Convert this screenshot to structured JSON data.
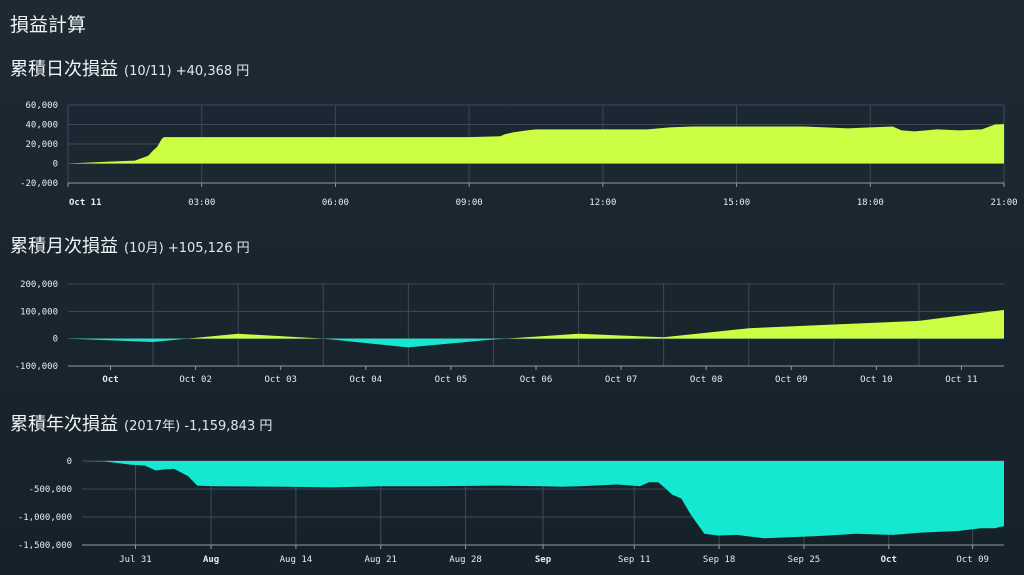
{
  "page_title": "損益計算",
  "sections": [
    {
      "title": "累積日次損益",
      "period": "(10/11)",
      "value": "+40,368",
      "unit": "円"
    },
    {
      "title": "累積月次損益",
      "period": "(10月)",
      "value": "+105,126",
      "unit": "円"
    },
    {
      "title": "累積年次損益",
      "period": "(2017年)",
      "value": "-1,159,843",
      "unit": "円"
    }
  ],
  "colors": {
    "positive": "#ccff44",
    "negative": "#14e8d0",
    "grid": "#3a4b56",
    "axis": "#8a9aa4"
  },
  "chart_data": [
    {
      "type": "area",
      "xlim": [
        0,
        21
      ],
      "ylim": [
        -20000,
        60000
      ],
      "yticks": [
        -20000,
        0,
        20000,
        40000,
        60000
      ],
      "ytick_labels": [
        "-20,000",
        "0",
        "20,000",
        "40,000",
        "60,000"
      ],
      "xticks": [
        0,
        3,
        6,
        9,
        12,
        15,
        18,
        21
      ],
      "xtick_labels": [
        "Oct 11",
        "03:00",
        "06:00",
        "09:00",
        "12:00",
        "15:00",
        "18:00",
        "21:00"
      ],
      "xtick_bold": [
        true,
        false,
        false,
        false,
        false,
        false,
        false,
        false
      ],
      "x": [
        0,
        0.5,
        1.0,
        1.5,
        1.8,
        1.9,
        2.0,
        2.1,
        2.15,
        2.2,
        3.0,
        5.0,
        7.0,
        9.0,
        9.7,
        9.8,
        10.0,
        10.3,
        10.5,
        12.0,
        13.0,
        13.5,
        14.0,
        15.0,
        16.5,
        17.0,
        17.5,
        18.0,
        18.5,
        18.7,
        19.0,
        19.5,
        20.0,
        20.5,
        20.8,
        21.0
      ],
      "y": [
        0,
        1000,
        2000,
        3000,
        8000,
        13000,
        17000,
        25000,
        27000,
        27000,
        27000,
        27000,
        27000,
        27000,
        28000,
        30000,
        32000,
        34000,
        35000,
        35000,
        35000,
        37000,
        38000,
        38000,
        38000,
        37000,
        36000,
        37000,
        38000,
        34000,
        33000,
        35000,
        34000,
        35000,
        40000,
        40368
      ]
    },
    {
      "type": "area",
      "xlim": [
        0,
        11
      ],
      "ylim": [
        -100000,
        200000
      ],
      "yticks": [
        -100000,
        0,
        100000,
        200000
      ],
      "ytick_labels": [
        "-100,000",
        "0",
        "100,000",
        "200,000"
      ],
      "xticks": [
        0.5,
        1.5,
        2.5,
        3.5,
        4.5,
        5.5,
        6.5,
        7.5,
        8.5,
        9.5,
        10.5
      ],
      "xtick_labels": [
        "Oct",
        "Oct 02",
        "Oct 03",
        "Oct 04",
        "Oct 05",
        "Oct 06",
        "Oct 07",
        "Oct 08",
        "Oct 09",
        "Oct 10",
        "Oct 11"
      ],
      "xtick_bold": [
        true,
        false,
        false,
        false,
        false,
        false,
        false,
        false,
        false,
        false,
        false
      ],
      "gridx": [
        1,
        2,
        3,
        4,
        5,
        6,
        7,
        8,
        9,
        10
      ],
      "x": [
        0,
        1,
        2,
        3,
        4,
        5,
        6,
        7,
        8,
        9,
        10,
        11
      ],
      "y": [
        0,
        -12000,
        18000,
        0,
        -32000,
        -3000,
        18000,
        5000,
        38000,
        52000,
        65000,
        105126
      ]
    },
    {
      "type": "area",
      "xlim": [
        0,
        100
      ],
      "ylim": [
        -1500000,
        0
      ],
      "yticks": [
        -1500000,
        -1000000,
        -500000,
        0
      ],
      "ytick_labels": [
        "-1,500,000",
        "-1,000,000",
        "-500,000",
        "0"
      ],
      "xticks": [
        5.8,
        14.0,
        23.2,
        32.4,
        41.6,
        50.0,
        59.9,
        69.1,
        78.3,
        87.5,
        96.6
      ],
      "xtick_labels": [
        "Jul 31",
        "Aug",
        "Aug 14",
        "Aug 21",
        "Aug 28",
        "Sep",
        "Sep 11",
        "Sep 18",
        "Sep 25",
        "Oct",
        "Oct 09"
      ],
      "xtick_bold": [
        false,
        true,
        false,
        false,
        false,
        true,
        false,
        false,
        false,
        true,
        false
      ],
      "x": [
        0,
        2.5,
        5.5,
        6.8,
        8.0,
        9.0,
        10.0,
        11.5,
        12.5,
        14.5,
        22,
        27,
        33,
        38,
        45,
        50,
        52,
        54,
        58,
        60.5,
        61.5,
        62.5,
        63.5,
        64.0,
        65.0,
        66.0,
        67.5,
        69,
        71,
        72.5,
        74,
        77,
        80,
        84,
        88,
        91,
        95,
        97.5,
        99,
        100
      ],
      "y": [
        0,
        -10000,
        -70000,
        -80000,
        -170000,
        -150000,
        -140000,
        -270000,
        -440000,
        -450000,
        -460000,
        -470000,
        -450000,
        -450000,
        -440000,
        -450000,
        -460000,
        -450000,
        -420000,
        -450000,
        -380000,
        -380000,
        -520000,
        -600000,
        -670000,
        -950000,
        -1300000,
        -1330000,
        -1320000,
        -1350000,
        -1380000,
        -1360000,
        -1340000,
        -1300000,
        -1320000,
        -1280000,
        -1250000,
        -1200000,
        -1200000,
        -1160000
      ]
    }
  ]
}
